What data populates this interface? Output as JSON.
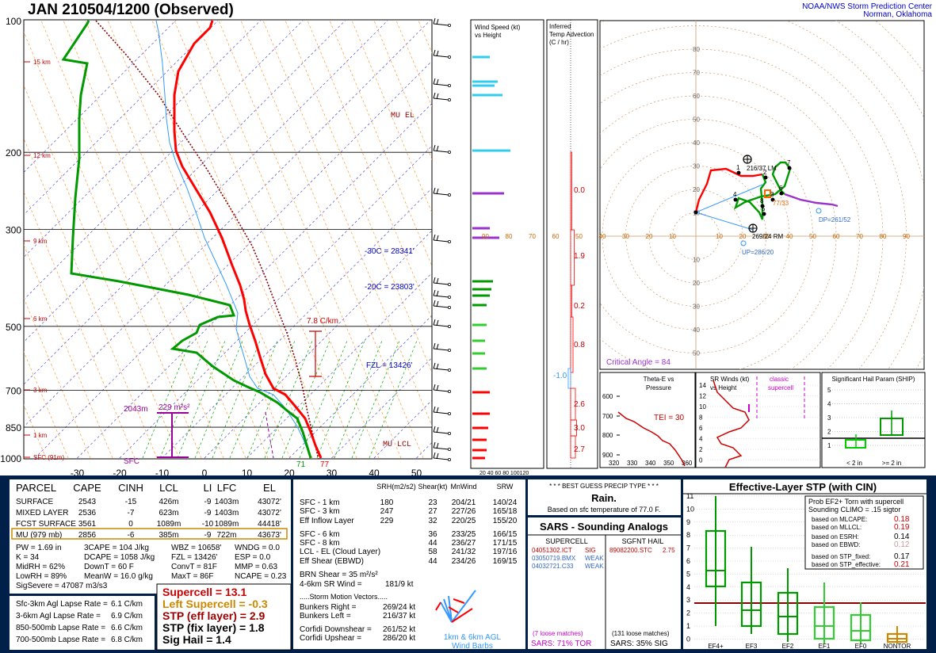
{
  "header": {
    "title": "JAN  210504/1200  (Observed)",
    "org_line1": "NOAA/NWS Storm Prediction Center",
    "org_line2": "Norman, Oklahoma"
  },
  "skewt": {
    "pressure_ticks": [
      100,
      200,
      300,
      500,
      700,
      850,
      1000
    ],
    "temp_ticks": [
      -30,
      -20,
      -10,
      0,
      10,
      20,
      30,
      40,
      50
    ],
    "height_labels": [
      "15 km",
      "12 km",
      "9 km",
      "6 km",
      "3 km",
      "1 km",
      "SFC (91m)"
    ],
    "labels": {
      "mu_el": "MU  EL",
      "mu_lcl": "MU  LCL",
      "m30c": "-30C = 28341'",
      "m20c": "-20C = 23803'",
      "fzl": "FZL = 13426'",
      "lapse": "7.8 C/km",
      "sfc": "SFC",
      "cape_height": "2043m",
      "cape_val": "229 m²s²",
      "sfc_t": "77",
      "sfc_td": "71"
    },
    "colors": {
      "temp": "#ff0000",
      "dewpoint": "#009900",
      "virtual": "#8b0000",
      "wetbulb": "#3399ff"
    }
  },
  "wind_panel": {
    "title1": "Wind Speed (kt)",
    "title2": "vs Height",
    "x_ticks": "20 40 60 80 100120"
  },
  "advection_panel": {
    "title1": "Inferred",
    "title2": "Temp Advection",
    "title3": "(C / hr)",
    "values": [
      "0.0",
      "1.9",
      "0.2",
      "0.8",
      "-1.0",
      "2.6",
      "3.0",
      "2.7"
    ]
  },
  "hodograph": {
    "ticks_pos": [
      "10",
      "20",
      "30",
      "40",
      "50",
      "60",
      "70",
      "80"
    ],
    "x_axis": [
      "90",
      "80",
      "70",
      "60",
      "50",
      "40",
      "30",
      "20",
      "10",
      "10",
      "20",
      "30",
      "40",
      "50",
      "60",
      "70",
      "80",
      "90"
    ],
    "lm": "216/37 LM",
    "rm": "269/24 RM",
    "dp": "DP=261/52",
    "up": "UP=286/20",
    "critical_angle": "Critical Angle = 84",
    "marker": "77/33",
    "points": [
      "1",
      "2",
      "3",
      "4",
      "5",
      "6",
      "7",
      "8"
    ]
  },
  "theta_panel": {
    "title1": "Theta-E vs",
    "title2": "Pressure",
    "tei": "TEI = 30",
    "p_ticks": [
      "600",
      "700",
      "800",
      "900"
    ],
    "x_ticks": [
      "320",
      "330",
      "340",
      "350",
      "360"
    ]
  },
  "srw_panel": {
    "title1": "SR Winds (kt)",
    "title2": "vs Height",
    "classic": "classic",
    "supercell": "supercell",
    "y_ticks": [
      "14",
      "12",
      "10",
      "8",
      "6",
      "4",
      "2",
      "0"
    ]
  },
  "ship_panel": {
    "title": "Significant Hail Param (SHIP)",
    "y_ticks": [
      "5",
      "4",
      "3",
      "2",
      "1"
    ],
    "x_labels": [
      "< 2 in",
      ">= 2 in"
    ]
  },
  "parcel_table": {
    "headers": [
      "PARCEL",
      "CAPE",
      "CINH",
      "LCL",
      "LI",
      "LFC",
      "EL"
    ],
    "rows": [
      [
        "SURFACE",
        "2543",
        "-15",
        "426m",
        "-9",
        "1403m",
        "43072'"
      ],
      [
        "MIXED LAYER",
        "2536",
        "-7",
        "623m",
        "-9",
        "1403m",
        "43072'"
      ],
      [
        "FCST SURFACE",
        "3561",
        "0",
        "1089m",
        "-10",
        "1089m",
        "44418'"
      ],
      [
        "MU   (979 mb)",
        "2856",
        "-6",
        "385m",
        "-9",
        "722m",
        "43673'"
      ]
    ]
  },
  "thermo": {
    "col1": [
      "PW = 1.69 in",
      "K = 34",
      "MidRH = 62%",
      "LowRH = 89%",
      "SigSevere = 47087 m3/s3"
    ],
    "col2": [
      "3CAPE = 104 J/kg",
      "DCAPE = 1058 J/kg",
      "DownT = 60 F",
      "MeanW = 16.0 g/kg"
    ],
    "col3": [
      "WBZ = 10658'",
      "FZL = 13426'",
      "ConvT = 81F",
      "MaxT = 86F"
    ],
    "col4": [
      "WNDG = 0.0",
      "ESP = 0.0",
      "MMP = 0.63",
      "NCAPE = 0.23"
    ]
  },
  "lapse": [
    [
      "Sfc-3km Agl Lapse Rate =",
      "6.1 C/km"
    ],
    [
      "3-6km Agl Lapse Rate =",
      "6.9 C/km"
    ],
    [
      "850-500mb Lapse Rate =",
      "6.6 C/km"
    ],
    [
      "700-500mb Lapse Rate =",
      "6.8 C/km"
    ]
  ],
  "composite": [
    "Supercell = 13.1",
    "Left Supercell = -0.3",
    "STP (eff layer) = 2.9",
    "STP (fix layer) = 1.8",
    "Sig Hail = 1.4"
  ],
  "kinematic": {
    "headers": [
      "SRH(m2/s2)",
      "Shear(kt)",
      "MnWind",
      "SRW"
    ],
    "rows": [
      [
        "SFC - 1 km",
        "180",
        "23",
        "204/21",
        "140/24"
      ],
      [
        "SFC - 3 km",
        "247",
        "27",
        "227/26",
        "165/18"
      ],
      [
        "Eff Inflow Layer",
        "229",
        "32",
        "220/25",
        "155/20"
      ],
      [
        "SFC - 6 km",
        "",
        "36",
        "233/25",
        "166/15"
      ],
      [
        "SFC - 8 km",
        "",
        "44",
        "236/27",
        "171/15"
      ],
      [
        "LCL - EL (Cloud Layer)",
        "",
        "58",
        "241/32",
        "197/16"
      ],
      [
        "Eff Shear (EBWD)",
        "",
        "44",
        "234/26",
        "169/15"
      ]
    ],
    "brn": "BRN Shear =  35 m²/s²",
    "sr46": "4-6km SR Wind =",
    "sr46_val": "181/9 kt",
    "smv": ".....Storm Motion Vectors.....",
    "br": "Bunkers Right =",
    "br_val": "269/24 kt",
    "bl": "Bunkers Left =",
    "bl_val": "216/37 kt",
    "cd": "Corfidi Downshear =",
    "cd_val": "261/52 kt",
    "cu": "Corfidi Upshear =",
    "cu_val": "286/20 kt",
    "barb_label1": "1km & 6km AGL",
    "barb_label2": "Wind Barbs"
  },
  "precip": {
    "title": "* * * BEST GUESS PRECIP TYPE * * *",
    "type": "Rain.",
    "basis": "Based on sfc temperature of 77.0 F."
  },
  "sars": {
    "title": "SARS - Sounding Analogs",
    "col1": "SUPERCELL",
    "col2": "SGFNT HAIL",
    "sup": [
      [
        "04051302.ICT",
        "SIG"
      ],
      [
        "03050719.BMX",
        "WEAK"
      ],
      [
        "04032721.C33",
        "WEAK"
      ]
    ],
    "hail": [
      [
        "89082200.STC",
        "2.75"
      ]
    ],
    "loose1": "(7 loose matches)",
    "sars1": "SARS:  71% TOR",
    "loose2": "(131 loose matches)",
    "sars2": "SARS:  35% SIG"
  },
  "stp_panel": {
    "title": "Effective-Layer STP (with CIN)",
    "prob1": "Prob EF2+ Torn with supercell",
    "prob2": "Sounding CLIMO = .15 sigtor",
    "rows": [
      [
        "based on MLCAPE:",
        "0.18"
      ],
      [
        "based on MLLCL:",
        "0.19"
      ],
      [
        "based on ESRH:",
        "0.14"
      ],
      [
        "based on EBWD:",
        "0.12"
      ],
      [
        "based on STP_fixed:",
        "0.17"
      ],
      [
        "based on STP_effective:",
        "0.21"
      ]
    ],
    "y_ticks": [
      "11",
      "10",
      "9",
      "8",
      "7",
      "6",
      "5",
      "4",
      "3",
      "2",
      "1",
      "0"
    ],
    "x_labels": [
      "EF4+",
      "EF3",
      "EF2",
      "EF1",
      "EF0",
      "NONTOR"
    ]
  }
}
